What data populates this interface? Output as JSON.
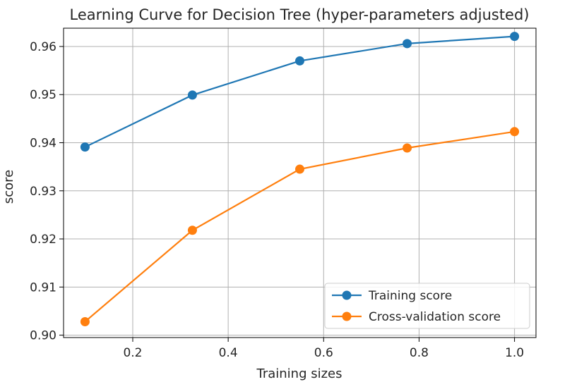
{
  "chart_data": {
    "type": "line",
    "title": "Learning Curve for Decision Tree (hyper-parameters adjusted)",
    "xlabel": "Training sizes",
    "ylabel": "score",
    "xlim": [
      0.055,
      1.045
    ],
    "ylim": [
      0.8995,
      0.9638
    ],
    "xticks": [
      0.2,
      0.4,
      0.6,
      0.8,
      1.0
    ],
    "xtick_labels": [
      "0.2",
      "0.4",
      "0.6",
      "0.8",
      "1.0"
    ],
    "yticks": [
      0.9,
      0.91,
      0.92,
      0.93,
      0.94,
      0.95,
      0.96
    ],
    "ytick_labels": [
      "0.90",
      "0.91",
      "0.92",
      "0.93",
      "0.94",
      "0.95",
      "0.96"
    ],
    "grid": true,
    "legend_position": "lower-right",
    "x": [
      0.1,
      0.325,
      0.55,
      0.775,
      1.0
    ],
    "series": [
      {
        "name": "Training score",
        "color": "#1f77b4",
        "values": [
          0.9391,
          0.9499,
          0.957,
          0.9606,
          0.9621
        ]
      },
      {
        "name": "Cross-validation score",
        "color": "#ff7f0e",
        "values": [
          0.9028,
          0.9218,
          0.9345,
          0.9389,
          0.9423
        ]
      }
    ]
  }
}
